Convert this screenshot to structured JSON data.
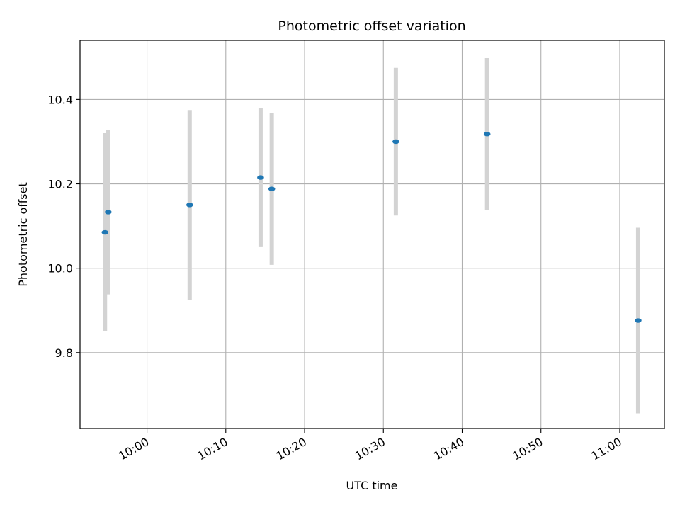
{
  "chart_data": {
    "type": "scatter",
    "title": "Photometric offset variation",
    "xlabel": "UTC time",
    "ylabel": "Photometric offset",
    "x_ticks": [
      "10:00",
      "10:10",
      "10:20",
      "10:30",
      "10:40",
      "10:50",
      "11:00"
    ],
    "y_ticks": [
      9.8,
      10.0,
      10.2,
      10.4
    ],
    "xlim": [
      "09:51:30",
      "11:05:40"
    ],
    "ylim": [
      9.62,
      10.54
    ],
    "grid": true,
    "marker_color": "#1f77b4",
    "errorbar_color": "#d3d3d3",
    "points": [
      {
        "x": "09:54:40",
        "y": 10.085,
        "yerr": 0.235
      },
      {
        "x": "09:55:05",
        "y": 10.133,
        "yerr": 0.195
      },
      {
        "x": "10:05:25",
        "y": 10.15,
        "yerr": 0.225
      },
      {
        "x": "10:14:25",
        "y": 10.215,
        "yerr": 0.165
      },
      {
        "x": "10:15:50",
        "y": 10.188,
        "yerr": 0.18
      },
      {
        "x": "10:31:35",
        "y": 10.3,
        "yerr": 0.175
      },
      {
        "x": "10:43:10",
        "y": 10.318,
        "yerr": 0.18
      },
      {
        "x": "11:02:20",
        "y": 9.876,
        "yerr": 0.22
      }
    ]
  }
}
